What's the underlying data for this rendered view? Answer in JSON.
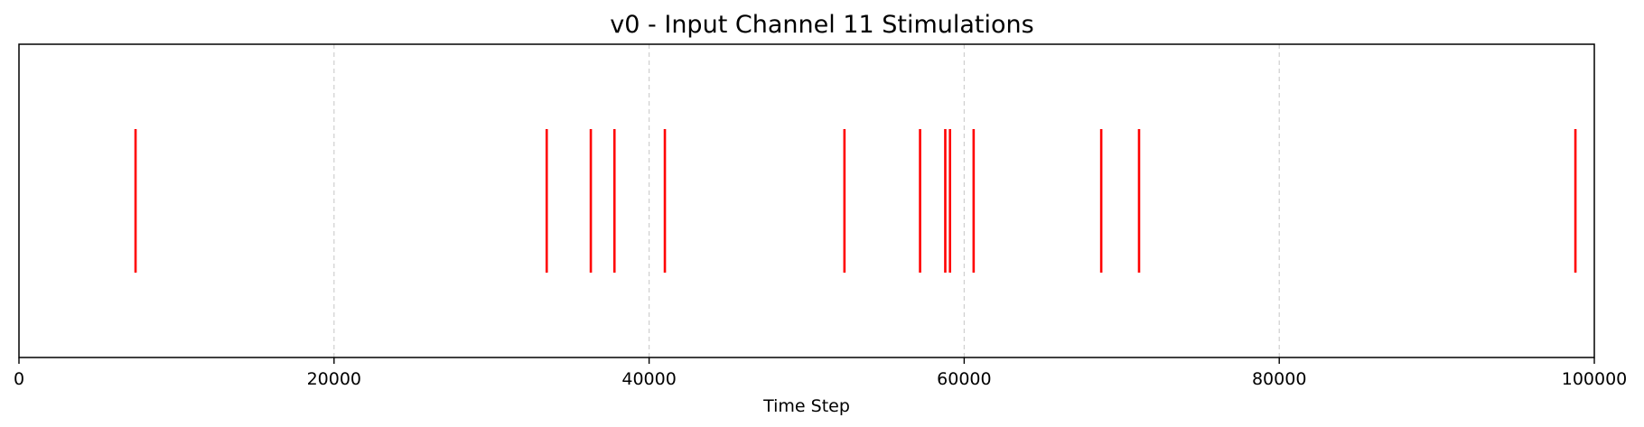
{
  "chart_data": {
    "type": "eventplot",
    "title": "v0 - Input Channel 11 Stimulations",
    "xlabel": "Time Step",
    "ylabel": "",
    "xlim": [
      0,
      100000
    ],
    "x_ticks": [
      0,
      20000,
      40000,
      60000,
      80000,
      100000
    ],
    "x_tick_labels": [
      "0",
      "20000",
      "40000",
      "60000",
      "80000",
      "100000"
    ],
    "grid": {
      "x": true,
      "y": false,
      "style": "dashed"
    },
    "y_ticks_visible": false,
    "series": [
      {
        "color": "#ff0000",
        "events": [
          7400,
          33500,
          36300,
          37800,
          41000,
          52400,
          57200,
          58800,
          59100,
          60600,
          68700,
          71100,
          98800
        ]
      }
    ]
  }
}
